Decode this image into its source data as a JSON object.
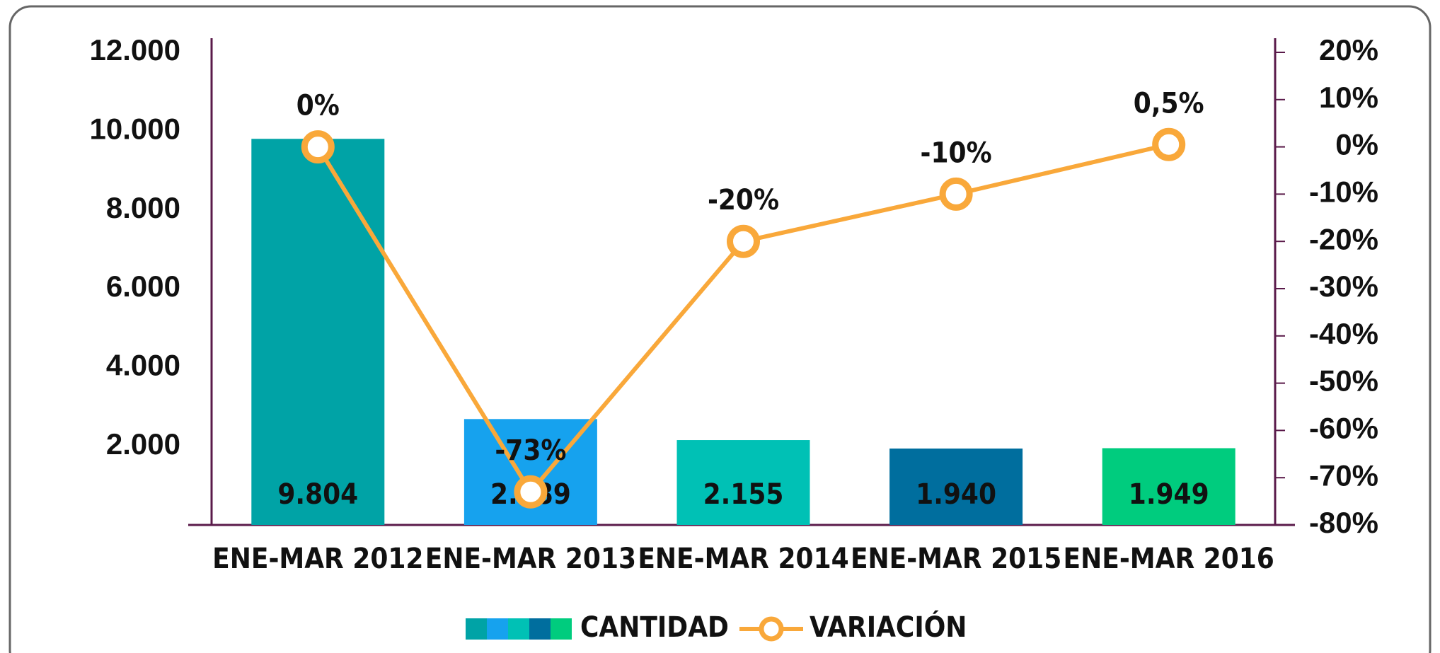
{
  "chart_data": {
    "type": "bar",
    "categories": [
      "ENE-MAR 2012",
      "ENE-MAR 2013",
      "ENE-MAR 2014",
      "ENE-MAR 2015",
      "ENE-MAR 2016"
    ],
    "series": [
      {
        "name": "CANTIDAD",
        "colors": [
          "#00a3a6",
          "#16a2ee",
          "#00c1b5",
          "#006e9e",
          "#00cc7e"
        ],
        "values": [
          9804,
          2689,
          2155,
          1940,
          1949
        ],
        "value_labels": [
          "9.804",
          "2.689",
          "2.155",
          "1.940",
          "1.949"
        ]
      },
      {
        "name": "VARIACIÓN",
        "type": "line",
        "axis": "y2",
        "color": "#f9a83a",
        "values": [
          0,
          -73,
          -20,
          -10,
          0.5
        ],
        "value_labels": [
          "0%",
          "-73%",
          "-20%",
          "-10%",
          "0,5%"
        ]
      }
    ],
    "ylim": [
      0,
      12000
    ],
    "yticks": [
      {
        "value": 2000,
        "label": "2.000"
      },
      {
        "value": 4000,
        "label": "4.000"
      },
      {
        "value": 6000,
        "label": "6.000"
      },
      {
        "value": 8000,
        "label": "8.000"
      },
      {
        "value": 10000,
        "label": "10.000"
      },
      {
        "value": 12000,
        "label": "12.000"
      }
    ],
    "y2lim": [
      -80,
      20
    ],
    "y2ticks": [
      {
        "value": -80,
        "label": "-80%"
      },
      {
        "value": -70,
        "label": "-70%"
      },
      {
        "value": -60,
        "label": "-60%"
      },
      {
        "value": -50,
        "label": "-50%"
      },
      {
        "value": -40,
        "label": "-40%"
      },
      {
        "value": -30,
        "label": "-30%"
      },
      {
        "value": -20,
        "label": "-20%"
      },
      {
        "value": -10,
        "label": "-10%"
      },
      {
        "value": 0,
        "label": "0%"
      },
      {
        "value": 10,
        "label": "10%"
      },
      {
        "value": 20,
        "label": "20%"
      }
    ],
    "grid": false,
    "legend": "bottom"
  }
}
